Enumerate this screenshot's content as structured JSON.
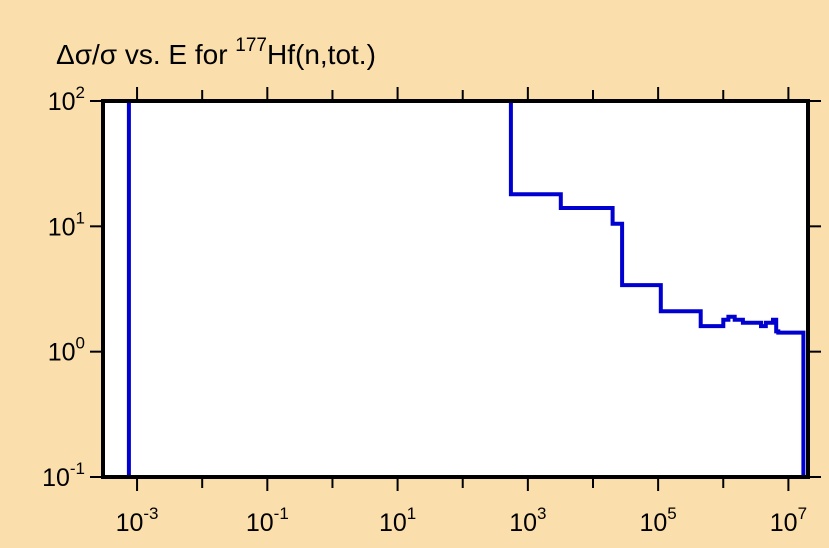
{
  "chart_data": {
    "type": "line",
    "title": {
      "prefix": "Δσ/σ vs. E for ",
      "sup": "177",
      "suffix": "Hf(n,tot.)"
    },
    "xlabel": "",
    "ylabel": "",
    "xscale": "log",
    "yscale": "log",
    "xlim": [
      0.0003,
      20000000
    ],
    "ylim": [
      0.1,
      100
    ],
    "x_ticks": [
      {
        "value": 0.001,
        "base": "10",
        "exp": "-3"
      },
      {
        "value": 0.1,
        "base": "10",
        "exp": "-1"
      },
      {
        "value": 10,
        "base": "10",
        "exp": "1"
      },
      {
        "value": 1000,
        "base": "10",
        "exp": "3"
      },
      {
        "value": 100000,
        "base": "10",
        "exp": "5"
      },
      {
        "value": 10000000,
        "base": "10",
        "exp": "7"
      }
    ],
    "y_ticks": [
      {
        "value": 0.1,
        "base": "10",
        "exp": "-1"
      },
      {
        "value": 1,
        "base": "10",
        "exp": "0"
      },
      {
        "value": 10,
        "base": "10",
        "exp": "1"
      },
      {
        "value": 100,
        "base": "10",
        "exp": "2"
      }
    ],
    "grid": false,
    "legend": "none",
    "colors": {
      "background": "#fadfad",
      "plot_area": "#ffffff",
      "frame": "#000000",
      "series": "#0000d0"
    },
    "series": [
      {
        "style": "step",
        "x": [
          0.00075,
          0.00075,
          550,
          550,
          3200,
          3200,
          20000,
          20000,
          28000,
          28000,
          110000,
          110000,
          450000,
          450000,
          1000000,
          1000000,
          1200000,
          1200000,
          1500000,
          1500000,
          2000000,
          2000000,
          3800000,
          3800000,
          4500000,
          4500000,
          5800000,
          5800000,
          6500000,
          6500000,
          7000000,
          7000000,
          17000000,
          17000000
        ],
        "y": [
          0.1,
          100,
          100,
          18,
          18,
          14,
          14,
          10.5,
          10.5,
          3.4,
          3.4,
          2.1,
          2.1,
          1.6,
          1.6,
          1.8,
          1.8,
          1.9,
          1.9,
          1.8,
          1.8,
          1.7,
          1.7,
          1.6,
          1.6,
          1.7,
          1.7,
          1.8,
          1.8,
          1.45,
          1.45,
          1.42,
          1.42,
          0.1
        ]
      }
    ]
  }
}
